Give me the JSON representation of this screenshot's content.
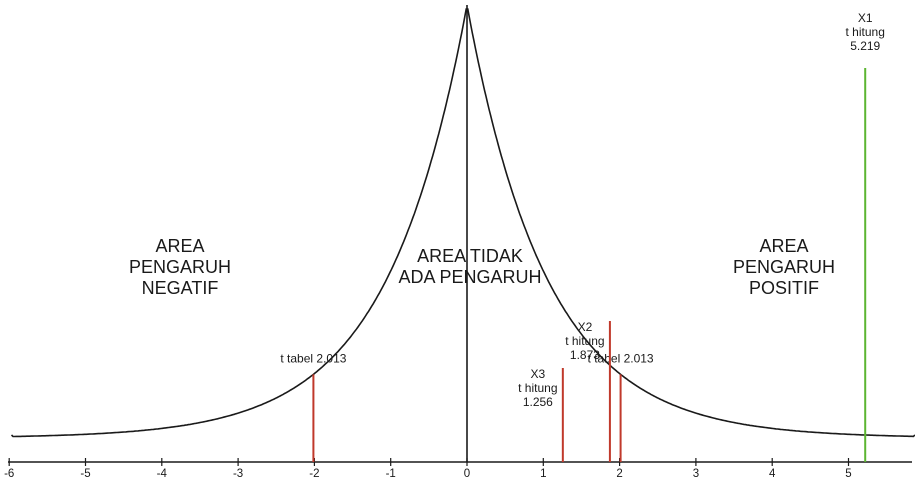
{
  "chart_data": {
    "type": "line",
    "xlim": [
      -6,
      5.9
    ],
    "ticks": [
      -6,
      -5,
      -4,
      -3,
      -2,
      -1,
      0,
      1,
      2,
      3,
      4,
      5
    ],
    "regions": {
      "negative": [
        "AREA",
        "PENGARUH",
        "NEGATIF"
      ],
      "neutral": [
        "AREA TIDAK",
        "ADA PENGARUH"
      ],
      "positive": [
        "AREA",
        "PENGARUH",
        "POSITIF"
      ]
    },
    "critical_values": [
      {
        "x": -2.013,
        "label": "t tabel 2.013",
        "color": "#c0392b"
      },
      {
        "x": 2.013,
        "label": "t tabel 2.013",
        "color": "#c0392b"
      }
    ],
    "variables": [
      {
        "x": 1.256,
        "name": "X3",
        "caption": "t hitung",
        "value": "1.256",
        "color": "#c0392b"
      },
      {
        "x": 1.873,
        "name": "X2",
        "caption": "t hitung",
        "value": "1.873",
        "color": "#c0392b"
      },
      {
        "x": 5.219,
        "name": "X1",
        "caption": "t hitung",
        "value": "5.219",
        "color": "#5cb531"
      }
    ],
    "curve_color": "#1a1a1a",
    "axis_color": "#1a1a1a"
  }
}
